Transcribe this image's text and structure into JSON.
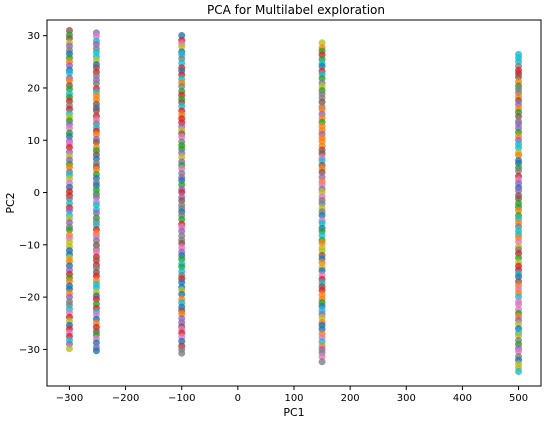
{
  "chart_data": {
    "type": "scatter",
    "title": "PCA for Multilabel exploration",
    "xlabel": "PC1",
    "ylabel": "PC2",
    "xlim": [
      -340,
      540
    ],
    "ylim": [
      -37,
      33
    ],
    "xticks": [
      -300,
      -200,
      -100,
      0,
      100,
      200,
      300,
      400,
      500
    ],
    "yticks": [
      -30,
      -20,
      -10,
      0,
      10,
      20,
      30
    ],
    "xtick_labels": [
      "−300",
      "−200",
      "−100",
      "0",
      "100",
      "200",
      "300",
      "400",
      "500"
    ],
    "ytick_labels": [
      "−30",
      "−20",
      "−10",
      "0",
      "10",
      "20",
      "30"
    ],
    "grid": false,
    "legend": "none",
    "palette": [
      "#1f77b4",
      "#ff7f0e",
      "#2ca02c",
      "#d62728",
      "#9467bd",
      "#8c564b",
      "#e377c2",
      "#7f7f7f",
      "#bcbd22",
      "#17becf"
    ],
    "marker_alpha": 0.8,
    "columns": [
      {
        "x": -300,
        "y_min": -30,
        "y_max": 31
      },
      {
        "x": -252,
        "y_min": -30.5,
        "y_max": 30.5
      },
      {
        "x": -100,
        "y_min": -31,
        "y_max": 30
      },
      {
        "x": 150,
        "y_min": -32.5,
        "y_max": 28.5
      },
      {
        "x": 500,
        "y_min": -34.5,
        "y_max": 26.5
      }
    ]
  }
}
